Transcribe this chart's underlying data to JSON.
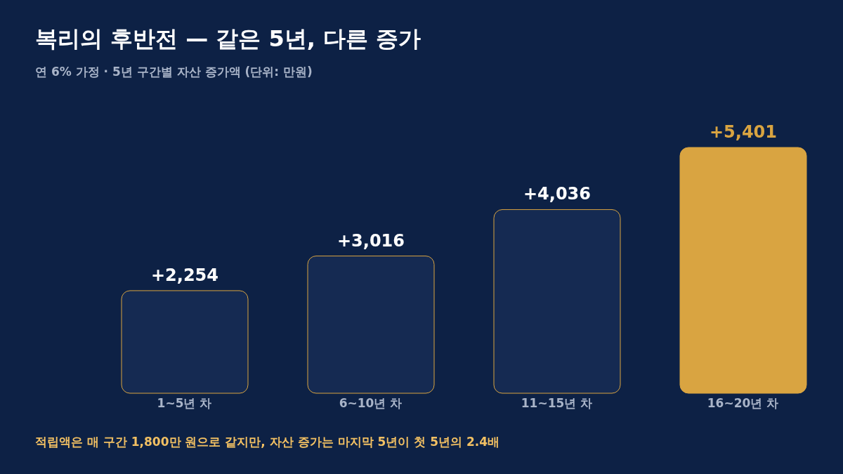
{
  "chart_data": {
    "type": "bar",
    "title": "복리의 후반전 — 같은 5년, 다른 증가",
    "subtitle": "연 6% 가정 · 5년 구간별 자산 증가액 (단위: 만원)",
    "categories": [
      "1~5년 차",
      "6~10년 차",
      "11~15년 차",
      "16~20년 차"
    ],
    "values": [
      2254,
      3016,
      4036,
      5401
    ],
    "colors": [
      "#152a52",
      "#152a52",
      "#152a52",
      "#d9a441"
    ],
    "value_labels": [
      "+2,254",
      "+3,016",
      "+4,036",
      "+5,401"
    ],
    "annotations": [
      "적립액은 매 구간 1,800만 원으로 같지만, 자산 증가는 마지막 5년이 첫 5년의 2.4배"
    ],
    "grid": false,
    "legend": false
  }
}
